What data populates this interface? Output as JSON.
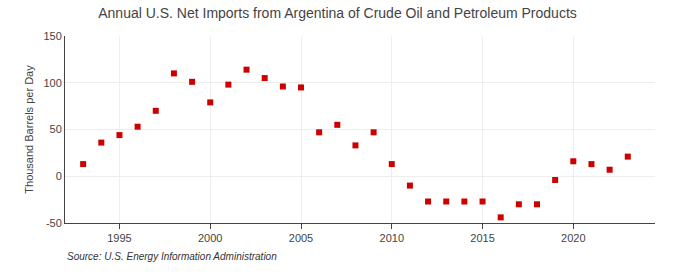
{
  "chart_data": {
    "type": "scatter",
    "title": "Annual U.S. Net Imports from Argentina of Crude Oil and Petroleum Products",
    "ylabel": "Thousand Barrels per Day",
    "annotations": [
      "Source: U.S. Energy Information Administration"
    ],
    "x": [
      1993,
      1994,
      1995,
      1996,
      1997,
      1998,
      1999,
      2000,
      2001,
      2002,
      2003,
      2004,
      2005,
      2006,
      2007,
      2008,
      2009,
      2010,
      2011,
      2012,
      2013,
      2014,
      2015,
      2016,
      2017,
      2018,
      2019,
      2020,
      2021,
      2022,
      2023
    ],
    "values": [
      13,
      36,
      44,
      53,
      70,
      110,
      101,
      79,
      98,
      114,
      105,
      96,
      95,
      47,
      55,
      33,
      47,
      13,
      -10,
      -27,
      -27,
      -27,
      -27,
      -44,
      -30,
      -30,
      -4,
      16,
      13,
      7,
      21
    ],
    "color": "#cc0000",
    "marker": "square",
    "xlim": [
      1992.0,
      2024.5
    ],
    "ylim": [
      -50,
      150
    ],
    "xticks": [
      1995,
      2000,
      2005,
      2010,
      2015,
      2020
    ],
    "yticks": [
      -50,
      0,
      50,
      100,
      150
    ],
    "grid": true
  }
}
